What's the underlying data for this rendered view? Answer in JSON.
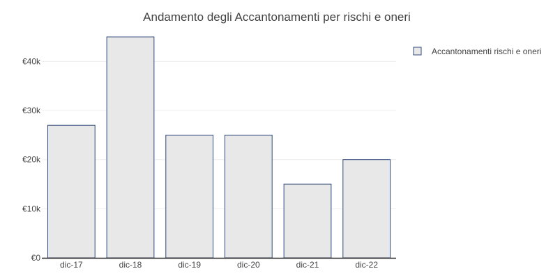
{
  "chart_data": {
    "type": "bar",
    "title": "Andamento degli Accantonamenti per rischi e oneri",
    "xlabel": "",
    "ylabel": "",
    "categories": [
      "dic-17",
      "dic-18",
      "dic-19",
      "dic-20",
      "dic-21",
      "dic-22"
    ],
    "series": [
      {
        "name": "Accantonamenti rischi e oneri",
        "values": [
          27000,
          45000,
          25000,
          25000,
          15000,
          20000
        ],
        "fill": "#e8e8e8",
        "stroke": "#2f4a7a"
      }
    ],
    "ylim": [
      0,
      46000
    ],
    "yticks": [
      0,
      10000,
      20000,
      30000,
      40000
    ],
    "ytick_labels": [
      "€0",
      "€10k",
      "€20k",
      "€30k",
      "€40k"
    ],
    "grid": true,
    "legend_position": "top-right"
  }
}
